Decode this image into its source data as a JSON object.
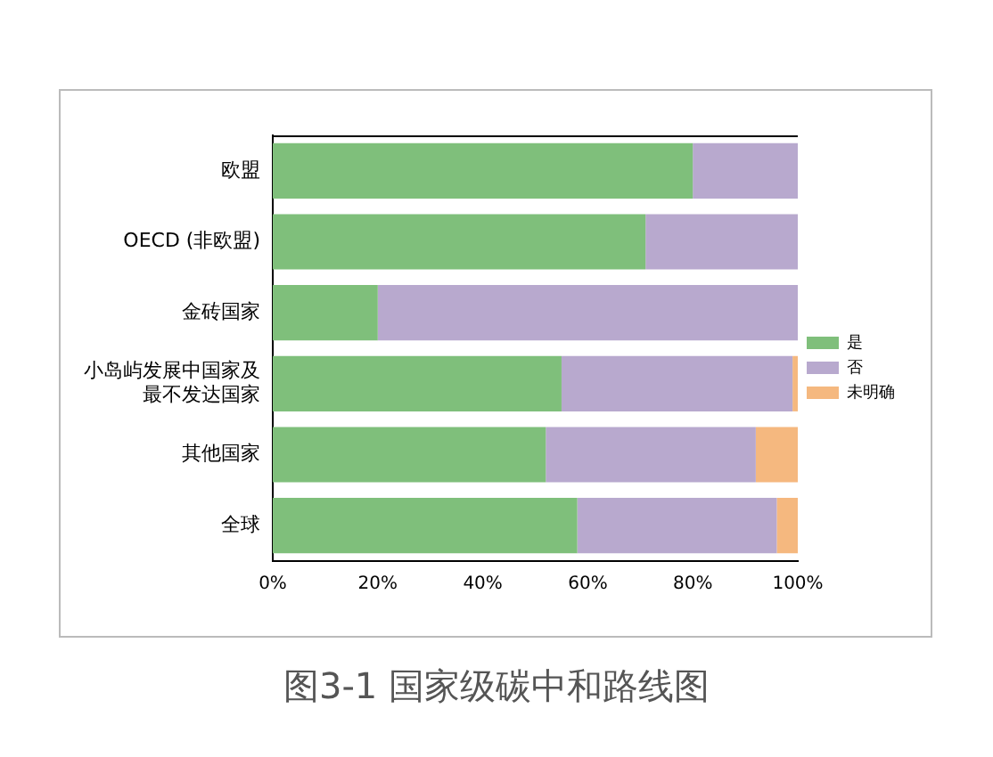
{
  "chart_data": {
    "type": "bar",
    "orientation": "horizontal",
    "stacked": true,
    "categories": [
      "欧盟",
      "OECD (非欧盟)",
      "金砖国家",
      "小岛屿发展中国家及最不发达国家",
      "其他国家",
      "全球"
    ],
    "series": [
      {
        "name": "是",
        "color": "#7fbf7b",
        "values": [
          80,
          71,
          20,
          55,
          52,
          58
        ]
      },
      {
        "name": "否",
        "color": "#b8a9ce",
        "values": [
          20,
          29,
          80,
          44,
          40,
          38
        ]
      },
      {
        "name": "未明确",
        "color": "#f5b87f",
        "values": [
          0,
          0,
          0,
          1,
          8,
          4
        ]
      }
    ],
    "xlim": [
      0,
      100
    ],
    "xticks": [
      {
        "value": 0,
        "label": "0%"
      },
      {
        "value": 20,
        "label": "20%"
      },
      {
        "value": 40,
        "label": "40%"
      },
      {
        "value": 60,
        "label": "60%"
      },
      {
        "value": 80,
        "label": "80%"
      },
      {
        "value": 100,
        "label": "100%"
      }
    ],
    "legend": "right",
    "grid": false,
    "annotations": [
      "图3-1 国家级碳中和路线图"
    ]
  }
}
